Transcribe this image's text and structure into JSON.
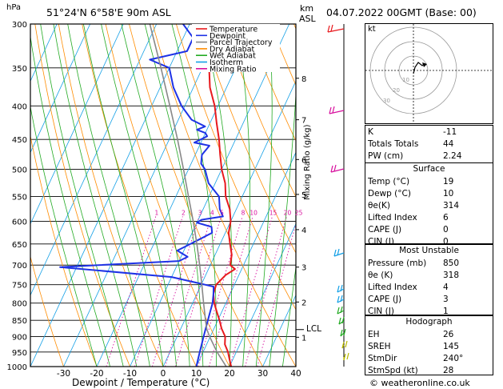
{
  "header": {
    "pressure_unit": "hPa",
    "station": "51°24'N  6°58'E  90m  ASL",
    "km_label": "km",
    "asl_label": "ASL",
    "datetime": "04.07.2022  00GMT  (Base: 00)"
  },
  "legend": [
    {
      "label": "Temperature",
      "color": "#e8191d"
    },
    {
      "label": "Dewpoint",
      "color": "#1e32e6"
    },
    {
      "label": "Parcel Trajectory",
      "color": "#888888"
    },
    {
      "label": "Dry Adiabat",
      "color": "#ff8c00"
    },
    {
      "label": "Wet Adiabat",
      "color": "#22aa22"
    },
    {
      "label": "Isotherm",
      "color": "#14a0e6"
    },
    {
      "label": "Mixing Ratio",
      "color": "#d8109e"
    }
  ],
  "chart_data": {
    "type": "line",
    "title": "",
    "xlabel": "Dewpoint / Temperature (°C)",
    "ylabel": "hPa",
    "y_scale": "log",
    "xlim": [
      -40,
      40
    ],
    "ylim": [
      1000,
      300
    ],
    "skew_degC_at_300hPa": 48,
    "pressure_ticks": [
      "300",
      "350",
      "400",
      "450",
      "500",
      "550",
      "600",
      "650",
      "700",
      "750",
      "800",
      "850",
      "900",
      "950",
      "1000"
    ],
    "temp_ticks": [
      "-30",
      "-20",
      "-10",
      "0",
      "10",
      "20",
      "30",
      "40"
    ],
    "km_ticks": [
      {
        "label": "8",
        "p": 363
      },
      {
        "label": "7",
        "p": 420
      },
      {
        "label": "6",
        "p": 483
      },
      {
        "label": "5",
        "p": 546
      },
      {
        "label": "4",
        "p": 618
      },
      {
        "label": "3",
        "p": 705
      },
      {
        "label": "2",
        "p": 797
      },
      {
        "label": "1",
        "p": 902
      }
    ],
    "lcl": {
      "label": "LCL",
      "p": 878
    },
    "mixing_ratio_label": "Mixing Ratio (g/kg)",
    "mixing_ratio_values": [
      "1",
      "2",
      "3",
      "4",
      "5",
      "8",
      "10",
      "15",
      "20",
      "25"
    ],
    "mixing_ratio_label_p": 585,
    "series": [
      {
        "name": "Temperature",
        "color": "#e8191d",
        "points": [
          [
            1000,
            20.5
          ],
          [
            975,
            19
          ],
          [
            950,
            17.5
          ],
          [
            925,
            15.5
          ],
          [
            900,
            14.5
          ],
          [
            875,
            12.3
          ],
          [
            850,
            10.5
          ],
          [
            825,
            8.5
          ],
          [
            800,
            6.5
          ],
          [
            775,
            5
          ],
          [
            750,
            4.5
          ],
          [
            725,
            6
          ],
          [
            710,
            8
          ],
          [
            700,
            6
          ],
          [
            675,
            5
          ],
          [
            650,
            3
          ],
          [
            625,
            1
          ],
          [
            600,
            0
          ],
          [
            575,
            -2
          ],
          [
            550,
            -5
          ],
          [
            525,
            -7
          ],
          [
            500,
            -10
          ],
          [
            475,
            -12.5
          ],
          [
            450,
            -15
          ],
          [
            425,
            -18
          ],
          [
            400,
            -21
          ],
          [
            375,
            -25
          ],
          [
            350,
            -28
          ],
          [
            325,
            -31
          ],
          [
            300,
            -35
          ]
        ]
      },
      {
        "name": "Dewpoint",
        "color": "#1e32e6",
        "points": [
          [
            1000,
            10
          ],
          [
            975,
            9.5
          ],
          [
            950,
            9
          ],
          [
            925,
            8.5
          ],
          [
            900,
            8
          ],
          [
            875,
            7.5
          ],
          [
            850,
            7
          ],
          [
            825,
            6.5
          ],
          [
            800,
            6
          ],
          [
            775,
            5
          ],
          [
            755,
            4
          ],
          [
            730,
            -10
          ],
          [
            705,
            -45
          ],
          [
            690,
            -10
          ],
          [
            680,
            -8
          ],
          [
            665,
            -12
          ],
          [
            655,
            -10
          ],
          [
            640,
            -7
          ],
          [
            625,
            -4
          ],
          [
            612,
            -5
          ],
          [
            603,
            -10
          ],
          [
            597,
            -9
          ],
          [
            590,
            -3
          ],
          [
            575,
            -5
          ],
          [
            550,
            -7
          ],
          [
            525,
            -12
          ],
          [
            500,
            -15
          ],
          [
            490,
            -17
          ],
          [
            475,
            -18
          ],
          [
            460,
            -17
          ],
          [
            455,
            -22
          ],
          [
            445,
            -19
          ],
          [
            440,
            -20
          ],
          [
            435,
            -23
          ],
          [
            430,
            -21
          ],
          [
            420,
            -26
          ],
          [
            400,
            -31
          ],
          [
            375,
            -36
          ],
          [
            350,
            -40
          ],
          [
            340,
            -47
          ],
          [
            330,
            -37
          ],
          [
            315,
            -37
          ],
          [
            300,
            -42
          ]
        ]
      },
      {
        "name": "Parcel Trajectory",
        "color": "#888888",
        "points": [
          [
            1000,
            19
          ],
          [
            950,
            14.2
          ],
          [
            900,
            9.8
          ],
          [
            878,
            8
          ],
          [
            850,
            6.3
          ],
          [
            800,
            3.3
          ],
          [
            750,
            0.2
          ],
          [
            700,
            -3.2
          ],
          [
            650,
            -7
          ],
          [
            600,
            -11.3
          ],
          [
            550,
            -16.2
          ],
          [
            500,
            -21.5
          ],
          [
            450,
            -27.5
          ],
          [
            400,
            -34.5
          ],
          [
            350,
            -42.5
          ],
          [
            300,
            -52
          ]
        ]
      }
    ]
  },
  "hodograph": {
    "label": "kt",
    "rings_kt": [
      "10",
      "20",
      "30"
    ]
  },
  "indices": {
    "general": [
      {
        "label": "K",
        "value": "-11"
      },
      {
        "label": "Totals Totals",
        "value": "44"
      },
      {
        "label": "PW (cm)",
        "value": "2.24"
      }
    ],
    "surface_title": "Surface",
    "surface": [
      {
        "label": "Temp (°C)",
        "value": "19"
      },
      {
        "label": "Dewp (°C)",
        "value": "10"
      },
      {
        "label": "θe(K)",
        "value": "314"
      },
      {
        "label": "Lifted Index",
        "value": "6"
      },
      {
        "label": "CAPE (J)",
        "value": "0"
      },
      {
        "label": "CIN (J)",
        "value": "0"
      }
    ],
    "most_unstable_title": "Most Unstable",
    "most_unstable": [
      {
        "label": "Pressure (mb)",
        "value": "850"
      },
      {
        "label": "θe (K)",
        "value": "318"
      },
      {
        "label": "Lifted Index",
        "value": "4"
      },
      {
        "label": "CAPE (J)",
        "value": "3"
      },
      {
        "label": "CIN (J)",
        "value": "1"
      }
    ],
    "hodograph_title": "Hodograph",
    "hodograph": [
      {
        "label": "EH",
        "value": "26"
      },
      {
        "label": "SREH",
        "value": "145"
      },
      {
        "label": "StmDir",
        "value": "240°"
      },
      {
        "label": "StmSpd (kt)",
        "value": "28"
      }
    ]
  },
  "copyright": "© weatheronline.co.uk"
}
